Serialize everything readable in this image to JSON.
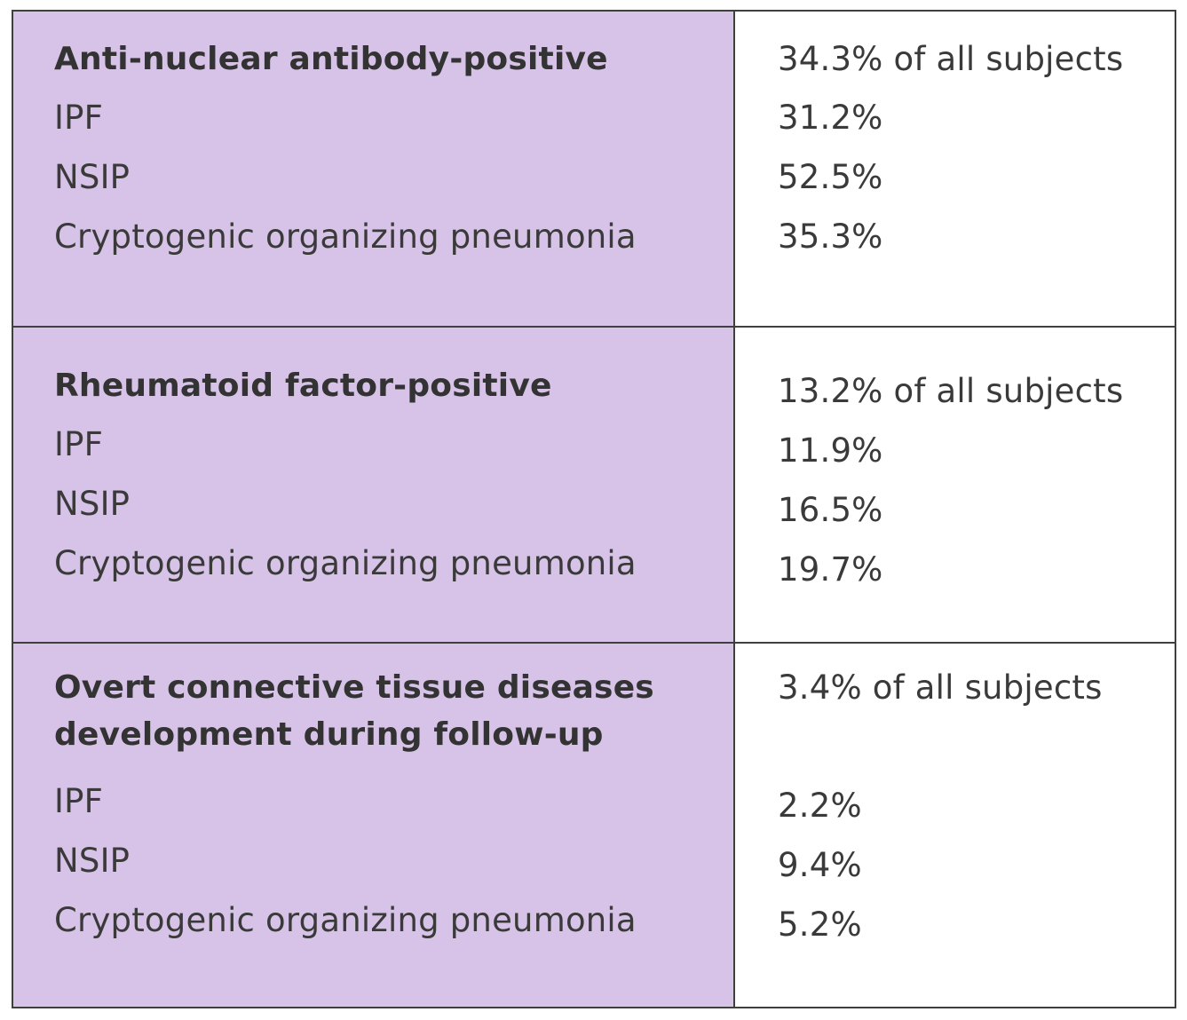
{
  "sections": [
    {
      "heading": "Anti-nuclear antibody-positive",
      "summary": "34.3% of all subjects",
      "rows": [
        {
          "label": "IPF",
          "value": "31.2%"
        },
        {
          "label": "NSIP",
          "value": "52.5%"
        },
        {
          "label": "Cryptogenic organizing pneumonia",
          "value": "35.3%"
        }
      ]
    },
    {
      "heading": "Rheumatoid factor-positive",
      "summary": "13.2% of all subjects",
      "rows": [
        {
          "label": "IPF",
          "value": "11.9%"
        },
        {
          "label": "NSIP",
          "value": "16.5%"
        },
        {
          "label": "Cryptogenic organizing pneumonia",
          "value": "19.7%"
        }
      ]
    },
    {
      "heading_line1": "Overt connective tissue diseases",
      "heading_line2": "development during follow-up",
      "summary": "3.4% of all subjects",
      "rows": [
        {
          "label": "IPF",
          "value": "2.2%"
        },
        {
          "label": "NSIP",
          "value": "9.4%"
        },
        {
          "label": "Cryptogenic organizing pneumonia",
          "value": "5.2%"
        }
      ]
    }
  ],
  "colors": {
    "left_column_bg": "#d8c3e8",
    "border": "#3f3f3f",
    "text": "#3a3a3a"
  }
}
